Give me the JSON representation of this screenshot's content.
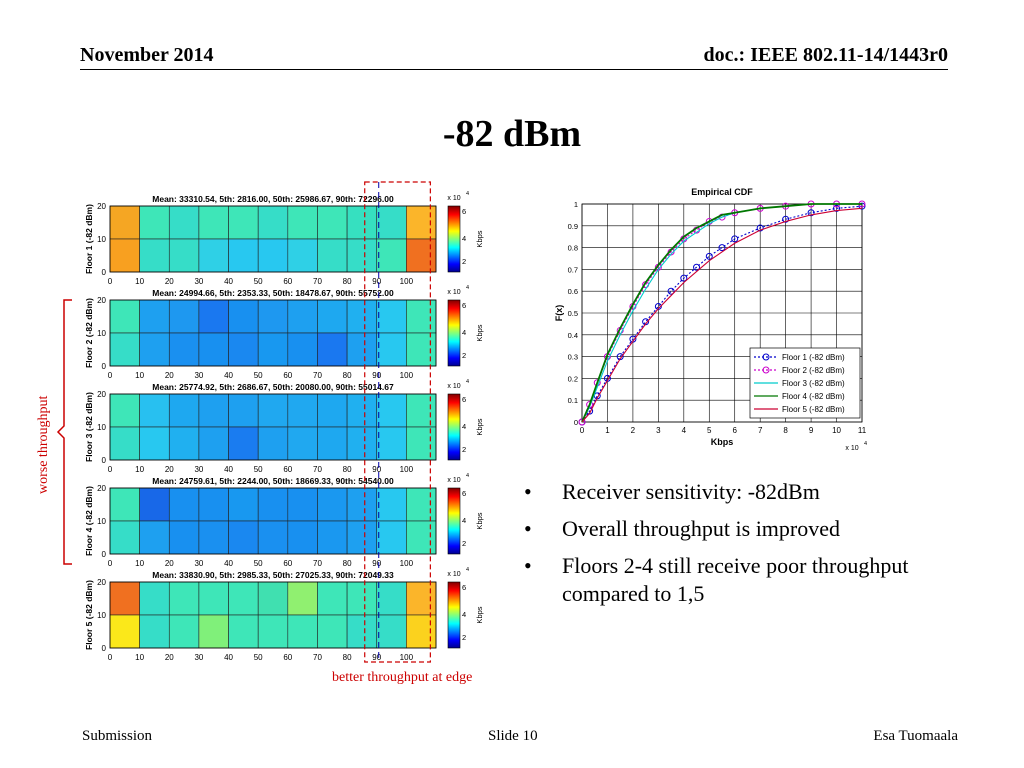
{
  "header": {
    "date": "November 2014",
    "doc_id": "doc.: IEEE 802.11-14/1443r0"
  },
  "slide_title": "-82 dBm",
  "bullets": [
    "Receiver sensitivity: -82dBm",
    "Overall throughput is improved",
    "Floors 2-4 still receive poor throughput compared to 1,5"
  ],
  "annotations": {
    "worse": "worse throughput",
    "edge": "better throughput at edge"
  },
  "footer": {
    "left": "Submission",
    "center": "Slide 10",
    "right": "Esa Tuomaala"
  },
  "heatmaps": {
    "x_ticks": [
      "0",
      "10",
      "20",
      "30",
      "40",
      "50",
      "60",
      "70",
      "80",
      "90",
      "100"
    ],
    "y_ticks": [
      "0",
      "10",
      "20"
    ],
    "colorbar_ticks": [
      "2",
      "4",
      "6"
    ],
    "colorbar_label": "Kbps",
    "colorbar_exp": "x 10",
    "colorbar_exp_power": "4",
    "panels": [
      {
        "ylabel": "Floor 1 (-82 dBm)",
        "title": "Mean: 33310.54, 5th: 2816.00, 50th: 25986.67, 90th: 72296.00",
        "cells": [
          [
            "#f5a623",
            "#3ee6b8",
            "#36ddc8",
            "#3ee6b8",
            "#3ee6b8",
            "#36ddc8",
            "#3ee6b8",
            "#3ee6b8",
            "#36e0c0",
            "#36ddc8",
            "#fbb52a"
          ],
          [
            "#f8a020",
            "#36ddc8",
            "#36ddc8",
            "#2fd0e6",
            "#28c8f0",
            "#28c8f0",
            "#2fd0e6",
            "#36ddc8",
            "#36ddc8",
            "#3ee6b8",
            "#f07020"
          ]
        ]
      },
      {
        "ylabel": "Floor 2 (-82 dBm)",
        "title": "Mean: 24994.66, 5th: 2353.33, 50th: 18478.67, 90th: 55752.00",
        "cells": [
          [
            "#3ee6b8",
            "#1ea0f0",
            "#1e98f0",
            "#1a78f0",
            "#1890f0",
            "#1e98f0",
            "#1ea0f0",
            "#1ea8f0",
            "#20b0f0",
            "#28c8f0",
            "#3ee6b8"
          ],
          [
            "#36ddc8",
            "#1ea0f0",
            "#1a90f0",
            "#1890f0",
            "#1a88f0",
            "#1898f0",
            "#1890f0",
            "#1a78f0",
            "#1ea0f0",
            "#28c8f0",
            "#3ee6b8"
          ]
        ]
      },
      {
        "ylabel": "Floor 3 (-82 dBm)",
        "title": "Mean: 25774.92, 5th: 2686.67, 50th: 20080.00, 90th: 55014.67",
        "cells": [
          [
            "#3ee6b8",
            "#28c0f0",
            "#1ea8f0",
            "#1ea0f0",
            "#1ea0f0",
            "#20a8f0",
            "#20a8f0",
            "#1ea8f0",
            "#20b0f0",
            "#28c8f0",
            "#3ee6b8"
          ],
          [
            "#36ddc8",
            "#28c8f0",
            "#20b0f0",
            "#1ea0f0",
            "#1a7cf0",
            "#1ea0f0",
            "#20a8f0",
            "#1ea8f0",
            "#20b0f0",
            "#28c8f0",
            "#3ee6b8"
          ]
        ]
      },
      {
        "ylabel": "Floor 4 (-82 dBm)",
        "title": "Mean: 24759.61, 5th: 2244.00, 50th: 18669.33, 90th: 54540.00",
        "cells": [
          [
            "#3ee6b8",
            "#1868e8",
            "#1890f0",
            "#1890f0",
            "#1898f0",
            "#1890f0",
            "#1890f0",
            "#1a98f0",
            "#1ea0f0",
            "#28c8f0",
            "#3ee6b8"
          ],
          [
            "#36ddc8",
            "#1ea0f0",
            "#1890f0",
            "#1a90f0",
            "#1a88f0",
            "#1a90f0",
            "#1890f0",
            "#1a98f0",
            "#1ea0f0",
            "#28c8f0",
            "#3ee6b8"
          ]
        ]
      },
      {
        "ylabel": "Floor 5 (-82 dBm)",
        "title": "Mean: 33830.90, 5th: 2985.33, 50th: 27025.33, 90th: 72049.33",
        "cells": [
          [
            "#f07020",
            "#36ddc8",
            "#3ee6b8",
            "#3ee6b8",
            "#3ee6b8",
            "#40e0b0",
            "#90f070",
            "#3ee6b8",
            "#3ee6b8",
            "#36ddc8",
            "#fbb52a"
          ],
          [
            "#fbe81a",
            "#36ddc8",
            "#3ee6b8",
            "#80f07a",
            "#3ee6b8",
            "#3ee6b8",
            "#3ee6b8",
            "#3ee6b8",
            "#36ddc8",
            "#36ddc8",
            "#fbd21e"
          ]
        ]
      }
    ]
  },
  "chart_data": {
    "type": "line",
    "title": "Empirical CDF",
    "xlabel": "Kbps",
    "ylabel": "F(x)",
    "x_multiplier_label": "x 10",
    "x_multiplier_power": "4",
    "xlim": [
      0,
      11
    ],
    "ylim": [
      0,
      1
    ],
    "x_ticks": [
      "0",
      "1",
      "2",
      "3",
      "4",
      "5",
      "6",
      "7",
      "8",
      "9",
      "10",
      "11"
    ],
    "y_ticks": [
      "0",
      "0.1",
      "0.2",
      "0.3",
      "0.4",
      "0.5",
      "0.6",
      "0.7",
      "0.8",
      "0.9",
      "1"
    ],
    "grid": true,
    "legend_position": "bottom-right",
    "series": [
      {
        "name": "Floor 1 (-82 dBm)",
        "color": "#0000cc",
        "style": "dotted",
        "marker": "circle",
        "x": [
          0,
          0.3,
          0.6,
          1.0,
          1.5,
          2.0,
          2.5,
          3.0,
          3.5,
          4.0,
          4.5,
          5.0,
          5.5,
          6.0,
          7.0,
          8.0,
          9.0,
          10.0,
          11.0
        ],
        "y": [
          0,
          0.05,
          0.12,
          0.2,
          0.3,
          0.38,
          0.46,
          0.53,
          0.6,
          0.66,
          0.71,
          0.76,
          0.8,
          0.84,
          0.89,
          0.93,
          0.96,
          0.98,
          0.99
        ]
      },
      {
        "name": "Floor 2 (-82 dBm)",
        "color": "#cc00cc",
        "style": "dotted",
        "marker": "circle",
        "x": [
          0,
          0.3,
          0.6,
          1.0,
          1.5,
          2.0,
          2.5,
          3.0,
          3.5,
          4.0,
          4.5,
          5.0,
          5.5,
          6.0,
          7.0,
          8.0,
          9.0,
          10.0,
          11.0
        ],
        "y": [
          0,
          0.08,
          0.18,
          0.3,
          0.42,
          0.53,
          0.63,
          0.71,
          0.78,
          0.84,
          0.88,
          0.92,
          0.94,
          0.96,
          0.98,
          0.99,
          1.0,
          1.0,
          1.0
        ]
      },
      {
        "name": "Floor 3 (-82 dBm)",
        "color": "#00cccc",
        "style": "solid",
        "marker": "none",
        "x": [
          0,
          0.3,
          0.6,
          1.0,
          1.5,
          2.0,
          2.5,
          3.0,
          3.5,
          4.0,
          4.5,
          5.0,
          5.5,
          6.0,
          7.0,
          8.0,
          9.0,
          10.0,
          11.0
        ],
        "y": [
          0,
          0.07,
          0.16,
          0.28,
          0.4,
          0.51,
          0.61,
          0.7,
          0.77,
          0.83,
          0.87,
          0.91,
          0.94,
          0.96,
          0.98,
          0.99,
          1.0,
          1.0,
          1.0
        ]
      },
      {
        "name": "Floor 4 (-82 dBm)",
        "color": "#007700",
        "style": "solid",
        "marker": "none",
        "x": [
          0,
          0.3,
          0.6,
          1.0,
          1.5,
          2.0,
          2.5,
          3.0,
          3.5,
          4.0,
          4.5,
          5.0,
          5.5,
          6.0,
          7.0,
          8.0,
          9.0,
          10.0,
          11.0
        ],
        "y": [
          0,
          0.08,
          0.18,
          0.31,
          0.43,
          0.54,
          0.64,
          0.72,
          0.79,
          0.85,
          0.89,
          0.92,
          0.95,
          0.96,
          0.98,
          0.99,
          1.0,
          1.0,
          1.0
        ]
      },
      {
        "name": "Floor 5 (-82 dBm)",
        "color": "#cc0033",
        "style": "solid",
        "marker": "none",
        "x": [
          0,
          0.3,
          0.6,
          1.0,
          1.5,
          2.0,
          2.5,
          3.0,
          3.5,
          4.0,
          4.5,
          5.0,
          5.5,
          6.0,
          7.0,
          8.0,
          9.0,
          10.0,
          11.0
        ],
        "y": [
          0,
          0.04,
          0.11,
          0.19,
          0.29,
          0.37,
          0.45,
          0.52,
          0.58,
          0.64,
          0.69,
          0.74,
          0.78,
          0.82,
          0.88,
          0.92,
          0.95,
          0.97,
          0.98
        ]
      }
    ]
  }
}
